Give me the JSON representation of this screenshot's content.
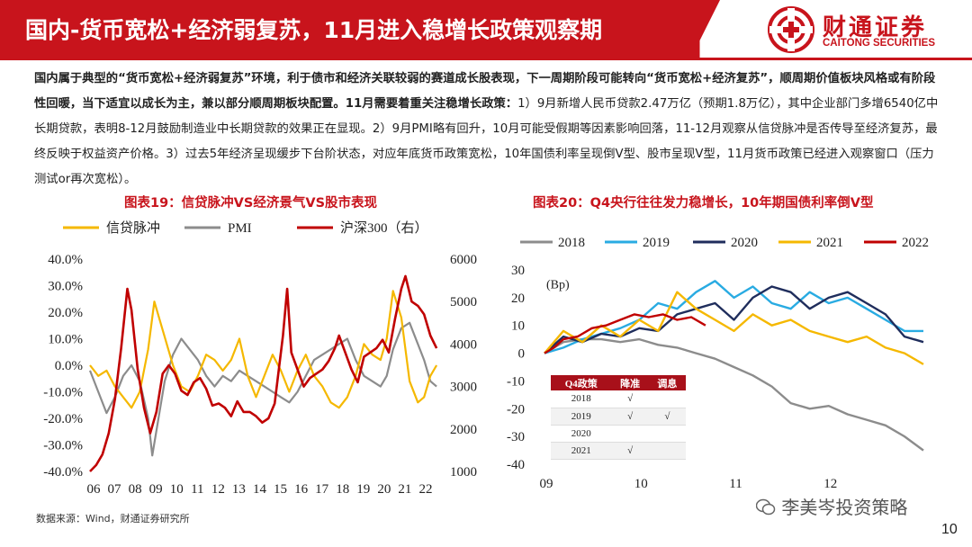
{
  "header": {
    "title": "国内-货币宽松+经济弱复苏，11月进入稳增长政策观察期",
    "logo_cn": "财通证券",
    "logo_en": "CAITONG SECURITIES"
  },
  "paragraph": {
    "bold1": "国内属于典型的“货币宽松+经济弱复苏”环境，利于债市和经济关联较弱的赛道成长股表现，下一周期阶段可能转向“货币宽松+经济复苏”，顺周期价值板块风格或有阶段性回暖，当下适宜以成长为主，兼以部分顺周期板块配置。11月需要着重关注稳增长政策：",
    "normal1": "1）9月新增人民币贷款2.47万亿（预期1.8万亿），其中企业部门多增6540亿中长期贷款，表明8-12月鼓励制造业中长期贷款的效果正在显现。2）9月PMI略有回升，10月可能受假期等因素影响回落，11-12月观察从信贷脉冲是否传导至经济复苏，最终反映于权益资产价格。3）过去5年经济呈现缓步下台阶状态，对应年底货币政策宽松，10年国债利率呈现倒V型、股市呈现V型，11月货币政策已经进入观察窗口（压力测试or再次宽松）。"
  },
  "figures": {
    "fig19_title": "图表19：信贷脉冲VS经济景气VS股市表现",
    "fig20_title": "图表20：Q4央行往往发力稳增长，10年期国债利率倒V型"
  },
  "colors": {
    "brand_red": "#c8141c",
    "credit": "#f5b800",
    "pmi": "#8c8c8c",
    "hs300": "#c00000",
    "y2018": "#8c8c8c",
    "y2019": "#29abe2",
    "y2020": "#1f2d5c",
    "y2021": "#f5b800",
    "y2022": "#c00000"
  },
  "chart_data": [
    {
      "type": "line",
      "legend_placement": "top",
      "y_left_ticks": [
        "40.0%",
        "30.0%",
        "20.0%",
        "10.0%",
        "0.0%",
        "-10.0%",
        "-20.0%",
        "-30.0%",
        "-40.0%"
      ],
      "y_right_ticks": [
        "6000",
        "5000",
        "4000",
        "3000",
        "2000",
        "1000"
      ],
      "x_ticks": [
        "06",
        "07",
        "08",
        "09",
        "10",
        "11",
        "12",
        "13",
        "14",
        "15",
        "16",
        "17",
        "18",
        "19",
        "20",
        "21",
        "22"
      ],
      "ylim_left": [
        -40,
        40
      ],
      "ylim_right": [
        1000,
        6000
      ],
      "xlim": [
        2006,
        2023
      ],
      "series": [
        {
          "name": "信贷脉冲",
          "axis": "left",
          "color": "#f5b800",
          "x": [
            2006.0,
            2006.4,
            2006.8,
            2007.2,
            2007.6,
            2008.0,
            2008.4,
            2008.8,
            2009.1,
            2009.4,
            2009.7,
            2010.0,
            2010.4,
            2010.8,
            2011.2,
            2011.6,
            2012.0,
            2012.4,
            2012.8,
            2013.2,
            2013.6,
            2014.0,
            2014.4,
            2014.8,
            2015.2,
            2015.6,
            2016.0,
            2016.4,
            2016.8,
            2017.2,
            2017.6,
            2018.0,
            2018.4,
            2018.8,
            2019.2,
            2019.6,
            2020.0,
            2020.3,
            2020.6,
            2021.0,
            2021.4,
            2021.8,
            2022.1,
            2022.4,
            2022.7
          ],
          "values": [
            0,
            -4,
            -2,
            -8,
            -12,
            -16,
            -10,
            6,
            24,
            16,
            8,
            0,
            -8,
            -10,
            -4,
            4,
            2,
            -2,
            2,
            10,
            -4,
            -12,
            -4,
            4,
            -2,
            -10,
            -2,
            4,
            -4,
            -8,
            -14,
            -16,
            -12,
            -4,
            8,
            4,
            2,
            10,
            28,
            18,
            -6,
            -14,
            -12,
            -4,
            0
          ]
        },
        {
          "name": "PMI",
          "axis": "left",
          "color": "#8c8c8c",
          "x": [
            2006.0,
            2006.4,
            2006.8,
            2007.2,
            2007.6,
            2008.0,
            2008.4,
            2008.8,
            2009.0,
            2009.3,
            2009.6,
            2010.0,
            2010.4,
            2010.8,
            2011.2,
            2011.6,
            2012.0,
            2012.4,
            2012.8,
            2013.2,
            2013.6,
            2014.0,
            2014.4,
            2014.8,
            2015.2,
            2015.6,
            2016.0,
            2016.4,
            2016.8,
            2017.2,
            2017.6,
            2018.0,
            2018.4,
            2018.8,
            2019.2,
            2019.6,
            2020.0,
            2020.3,
            2020.6,
            2021.0,
            2021.4,
            2021.8,
            2022.1,
            2022.4,
            2022.7
          ],
          "values": [
            -2,
            -10,
            -18,
            -12,
            -4,
            0,
            -6,
            -20,
            -34,
            -20,
            -6,
            4,
            10,
            6,
            2,
            -4,
            -8,
            -4,
            -6,
            -2,
            -4,
            -6,
            -8,
            -10,
            -12,
            -14,
            -10,
            -4,
            2,
            4,
            6,
            8,
            10,
            2,
            -4,
            -6,
            -8,
            -4,
            6,
            14,
            16,
            8,
            2,
            -6,
            -8
          ]
        },
        {
          "name": "沪深300（右）",
          "axis": "right",
          "color": "#c00000",
          "x": [
            2006.0,
            2006.3,
            2006.6,
            2006.9,
            2007.2,
            2007.5,
            2007.8,
            2008.0,
            2008.3,
            2008.6,
            2008.9,
            2009.2,
            2009.5,
            2009.8,
            2010.1,
            2010.4,
            2010.7,
            2011.0,
            2011.3,
            2011.6,
            2011.9,
            2012.2,
            2012.5,
            2012.8,
            2013.1,
            2013.4,
            2013.7,
            2014.0,
            2014.3,
            2014.6,
            2014.9,
            2015.1,
            2015.3,
            2015.5,
            2015.7,
            2016.0,
            2016.3,
            2016.6,
            2016.9,
            2017.2,
            2017.5,
            2017.8,
            2018.0,
            2018.3,
            2018.6,
            2018.9,
            2019.2,
            2019.5,
            2019.8,
            2020.1,
            2020.4,
            2020.7,
            2021.0,
            2021.2,
            2021.5,
            2021.8,
            2022.1,
            2022.4,
            2022.7
          ],
          "values": [
            1000,
            1150,
            1400,
            1900,
            2700,
            3900,
            5300,
            4800,
            3400,
            2500,
            1900,
            2400,
            3300,
            3500,
            3300,
            2900,
            2800,
            3100,
            3200,
            2950,
            2550,
            2600,
            2500,
            2300,
            2650,
            2400,
            2400,
            2300,
            2150,
            2250,
            2600,
            3400,
            4200,
            5300,
            3800,
            3400,
            3000,
            3200,
            3300,
            3400,
            3600,
            3900,
            4200,
            3800,
            3400,
            3100,
            3700,
            3800,
            3900,
            4100,
            3800,
            4600,
            5300,
            5600,
            5000,
            4900,
            4700,
            4200,
            3900
          ]
        }
      ]
    },
    {
      "type": "line",
      "legend_placement": "top",
      "ylabel": "(Bp)",
      "y_ticks": [
        "30",
        "20",
        "10",
        "0",
        "-10",
        "-20",
        "-30",
        "-40"
      ],
      "x_ticks": [
        "09",
        "10",
        "11",
        "12"
      ],
      "ylim": [
        -40,
        30
      ],
      "xlim": [
        9,
        13
      ],
      "series": [
        {
          "name": "2018",
          "color": "#8c8c8c",
          "x": [
            9.0,
            9.2,
            9.4,
            9.6,
            9.8,
            10.0,
            10.2,
            10.4,
            10.6,
            10.8,
            11.0,
            11.2,
            11.4,
            11.6,
            11.8,
            12.0,
            12.2,
            12.4,
            12.6,
            12.8,
            13.0
          ],
          "values": [
            0,
            4,
            5,
            5,
            4,
            5,
            3,
            2,
            0,
            -2,
            -5,
            -8,
            -12,
            -18,
            -20,
            -19,
            -22,
            -24,
            -26,
            -30,
            -35
          ]
        },
        {
          "name": "2019",
          "color": "#29abe2",
          "x": [
            9.0,
            9.2,
            9.4,
            9.6,
            9.8,
            10.0,
            10.2,
            10.4,
            10.6,
            10.8,
            11.0,
            11.2,
            11.4,
            11.6,
            11.8,
            12.0,
            12.2,
            12.4,
            12.6,
            12.8,
            13.0
          ],
          "values": [
            0,
            2,
            5,
            7,
            9,
            12,
            18,
            16,
            22,
            26,
            20,
            24,
            18,
            16,
            22,
            18,
            20,
            16,
            12,
            8,
            8
          ]
        },
        {
          "name": "2020",
          "color": "#1f2d5c",
          "x": [
            9.0,
            9.2,
            9.4,
            9.6,
            9.8,
            10.0,
            10.2,
            10.4,
            10.6,
            10.8,
            11.0,
            11.2,
            11.4,
            11.6,
            11.8,
            12.0,
            12.2,
            12.4,
            12.6,
            12.8,
            13.0
          ],
          "values": [
            0,
            6,
            4,
            7,
            6,
            9,
            8,
            14,
            16,
            18,
            12,
            20,
            24,
            22,
            16,
            20,
            22,
            18,
            14,
            6,
            4
          ]
        },
        {
          "name": "2021",
          "color": "#f5b800",
          "x": [
            9.0,
            9.2,
            9.4,
            9.6,
            9.8,
            10.0,
            10.2,
            10.4,
            10.6,
            10.8,
            11.0,
            11.2,
            11.4,
            11.6,
            11.8,
            12.0,
            12.2,
            12.4,
            12.6,
            12.8,
            13.0
          ],
          "values": [
            0,
            8,
            4,
            10,
            6,
            12,
            8,
            22,
            16,
            12,
            8,
            14,
            10,
            12,
            8,
            6,
            4,
            6,
            2,
            0,
            -4
          ]
        },
        {
          "name": "2022",
          "color": "#c00000",
          "x": [
            9.0,
            9.1,
            9.2,
            9.35,
            9.5,
            9.65,
            9.8,
            9.95,
            10.1,
            10.25,
            10.4,
            10.55,
            10.7
          ],
          "values": [
            0,
            2,
            5,
            6,
            9,
            10,
            12,
            14,
            13,
            14,
            12,
            13,
            10
          ]
        }
      ]
    }
  ],
  "policy_table": {
    "headers": [
      "Q4政策",
      "降准",
      "调息"
    ],
    "rows": [
      [
        "2018",
        "√",
        ""
      ],
      [
        "2019",
        "√",
        "√"
      ],
      [
        "2020",
        "",
        ""
      ],
      [
        "2021",
        "√",
        ""
      ]
    ]
  },
  "footer": {
    "source": "数据来源：Wind，财通证券研究所",
    "watermark": "李美岑投资策略",
    "page": "10"
  }
}
